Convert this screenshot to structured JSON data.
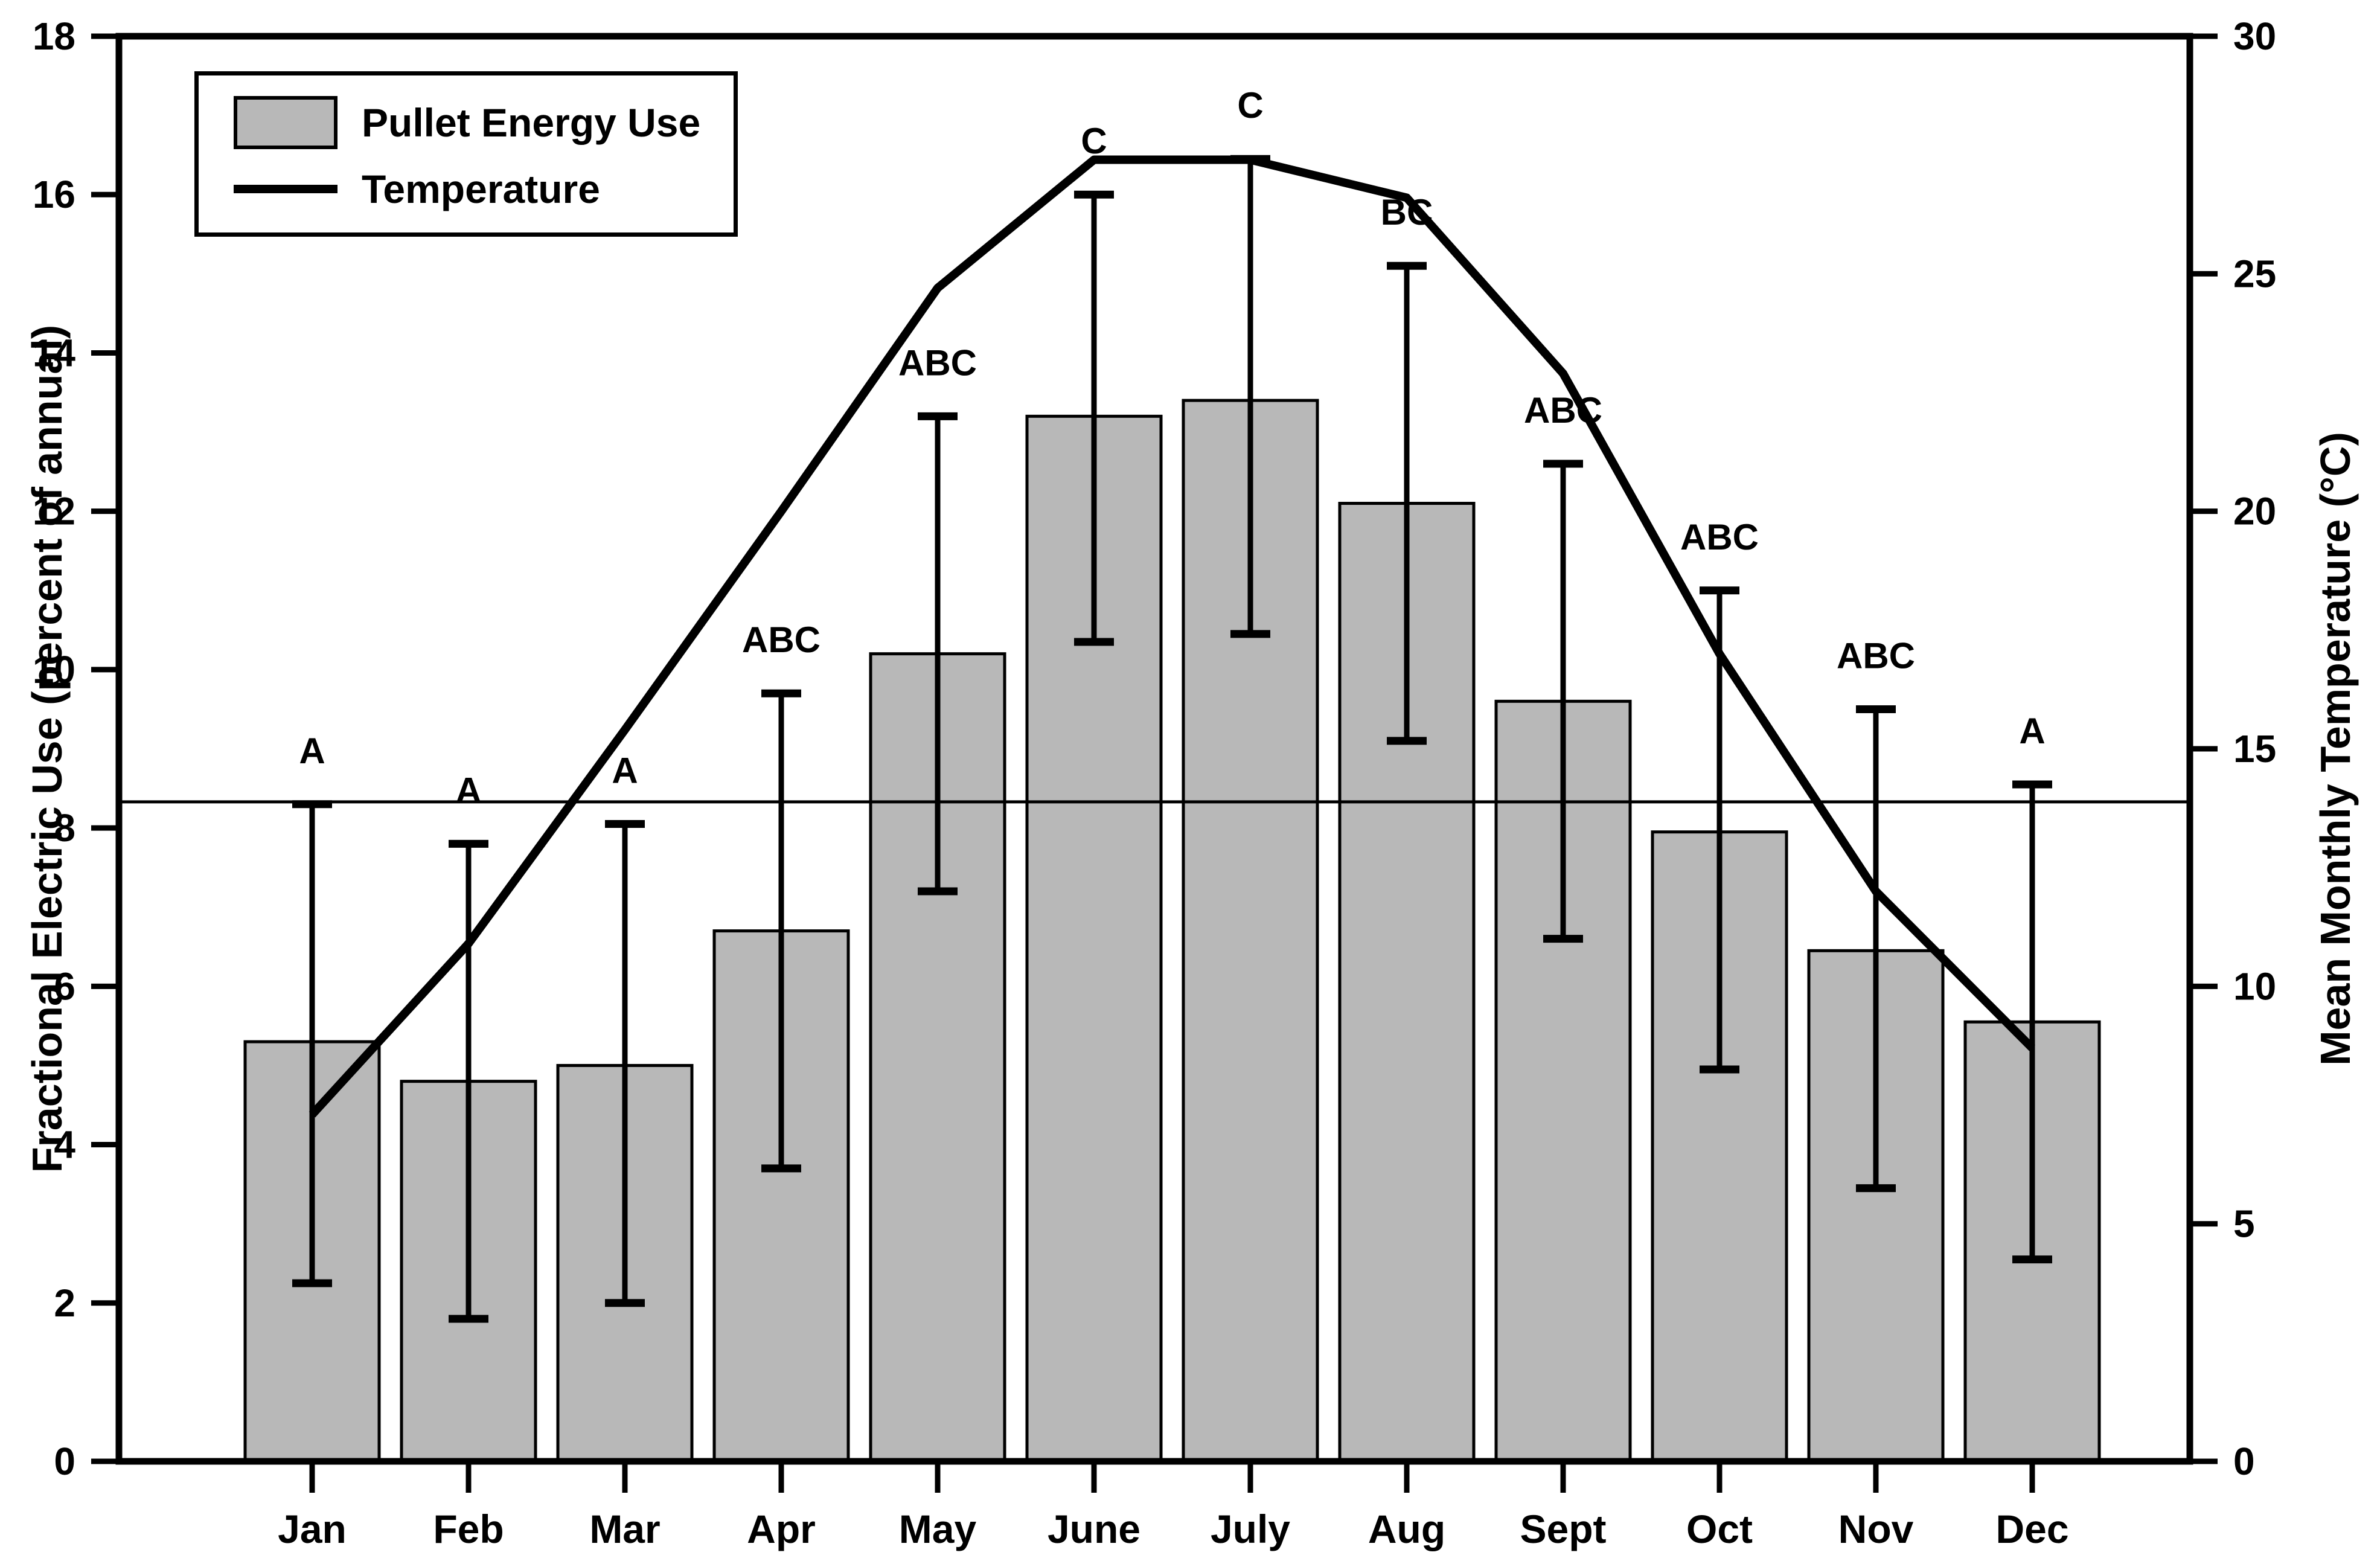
{
  "chart_data": {
    "type": "bar",
    "categories": [
      "Jan",
      "Feb",
      "Mar",
      "Apr",
      "May",
      "June",
      "July",
      "Aug",
      "Sept",
      "Oct",
      "Nov",
      "Dec"
    ],
    "series": [
      {
        "name": "Pullet Energy Use",
        "type": "bar",
        "axis": "left",
        "values": [
          5.3,
          4.8,
          5.0,
          6.7,
          10.2,
          13.2,
          13.4,
          12.1,
          9.6,
          7.95,
          6.45,
          5.55
        ],
        "error_high": [
          8.3,
          7.8,
          8.05,
          9.7,
          13.2,
          16.0,
          16.45,
          15.1,
          12.6,
          11.0,
          9.5,
          8.55
        ],
        "error_low": [
          2.25,
          1.8,
          2.0,
          3.7,
          7.2,
          10.35,
          10.45,
          9.1,
          6.6,
          4.95,
          3.45,
          2.55
        ]
      },
      {
        "name": "Temperature",
        "type": "line",
        "axis": "right",
        "values": [
          7.3,
          10.9,
          15.4,
          20.0,
          24.7,
          27.4,
          27.4,
          26.6,
          22.9,
          17.0,
          12.0,
          8.7
        ]
      }
    ],
    "significance_letters": [
      "A",
      "A",
      "A",
      "ABC",
      "ABC",
      "C",
      "C",
      "BC",
      "ABC",
      "ABC",
      "ABC",
      "A"
    ],
    "reference_line": {
      "axis": "left",
      "value": 8.33
    },
    "left_axis": {
      "label": "Fractional Electric Use (percent of annual)",
      "min": 0,
      "max": 18,
      "tick_step": 2,
      "ticks": [
        "0",
        "2",
        "4",
        "6",
        "8",
        "10",
        "12",
        "14",
        "16",
        "18"
      ]
    },
    "right_axis": {
      "label": "Mean Monthly Temperature (°C)",
      "min": 0,
      "max": 30,
      "tick_step": 5,
      "ticks": [
        "0",
        "5",
        "10",
        "15",
        "20",
        "25",
        "30"
      ]
    },
    "legend": [
      {
        "label": "Pullet Energy Use",
        "swatch": "bar"
      },
      {
        "label": "Temperature",
        "swatch": "line"
      }
    ],
    "grid": "off",
    "legend_position": "top-left",
    "colors": {
      "bar_fill": "#b8b8b8",
      "bar_stroke": "#000000",
      "line_color": "#000000",
      "background": "#ffffff"
    }
  }
}
